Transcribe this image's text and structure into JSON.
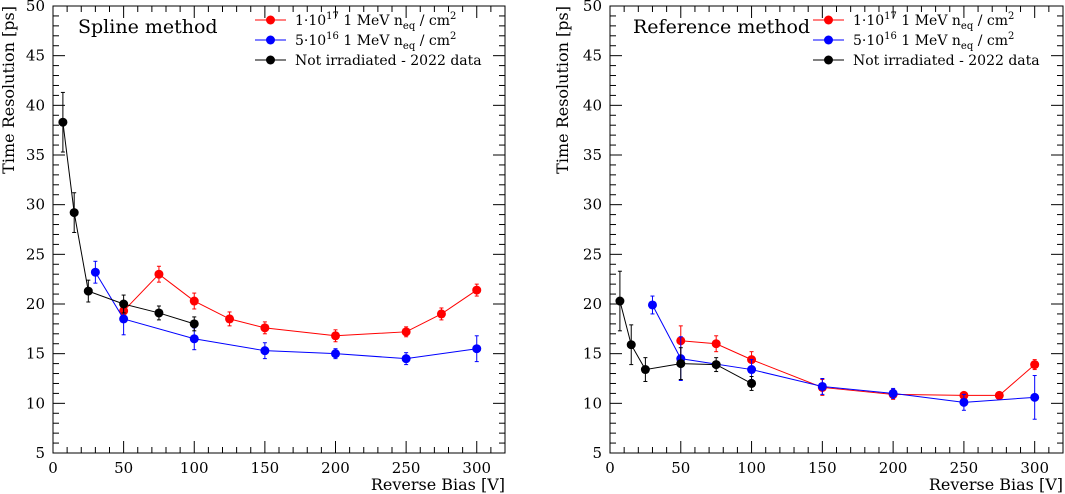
{
  "chart_data": [
    {
      "type": "scatter",
      "title": "Spline method",
      "xlabel": "Reverse Bias [V]",
      "ylabel": "Time Resolution [ps]",
      "xlim": [
        0,
        320
      ],
      "ylim": [
        5,
        50
      ],
      "xticks": [
        0,
        50,
        100,
        150,
        200,
        250,
        300
      ],
      "yticks": [
        5,
        10,
        15,
        20,
        25,
        30,
        35,
        40,
        45,
        50
      ],
      "legend_position": "top-right",
      "series": [
        {
          "name": "1·10^17 1 MeV n_eq / cm^2",
          "legend": {
            "pre": "1·10",
            "sup1": "17",
            "mid": " 1 MeV n",
            "sub": "eq",
            "post": " / cm",
            "sup2": "2"
          },
          "color": "#ff0000",
          "x": [
            50,
            75,
            100,
            125,
            150,
            200,
            250,
            275,
            300
          ],
          "y": [
            19.3,
            23.0,
            20.3,
            18.5,
            17.6,
            16.8,
            17.2,
            19.0,
            21.4
          ],
          "err": [
            1.0,
            0.8,
            0.8,
            0.7,
            0.6,
            0.6,
            0.5,
            0.6,
            0.6
          ]
        },
        {
          "name": "5·10^16 1 MeV n_eq / cm^2",
          "legend": {
            "pre": "5·10",
            "sup1": "16",
            "mid": " 1 MeV n",
            "sub": "eq",
            "post": " / cm",
            "sup2": "2"
          },
          "color": "#0000ff",
          "x": [
            30,
            50,
            100,
            150,
            200,
            250,
            300
          ],
          "y": [
            23.2,
            18.5,
            16.5,
            15.3,
            15.0,
            14.5,
            15.5
          ],
          "err": [
            1.1,
            1.6,
            1.1,
            0.8,
            0.5,
            0.6,
            1.3
          ]
        },
        {
          "name": "Not irradiated - 2022 data",
          "legend": {
            "pre": "Not irradiated - 2022 data",
            "sup1": "",
            "mid": "",
            "sub": "",
            "post": "",
            "sup2": ""
          },
          "color": "#000000",
          "x": [
            7,
            15,
            25,
            50,
            75,
            100
          ],
          "y": [
            38.3,
            29.2,
            21.3,
            20.0,
            19.1,
            18.0
          ],
          "err": [
            3.0,
            2.0,
            1.1,
            0.9,
            0.7,
            0.7
          ]
        }
      ]
    },
    {
      "type": "scatter",
      "title": "Reference method",
      "xlabel": "Reverse Bias [V]",
      "ylabel": "Time Resolution [ps]",
      "xlim": [
        0,
        320
      ],
      "ylim": [
        5,
        50
      ],
      "xticks": [
        0,
        50,
        100,
        150,
        200,
        250,
        300
      ],
      "yticks": [
        5,
        10,
        15,
        20,
        25,
        30,
        35,
        40,
        45,
        50
      ],
      "legend_position": "top-right",
      "series": [
        {
          "name": "1·10^17 1 MeV n_eq / cm^2",
          "legend": {
            "pre": "1·10",
            "sup1": "17",
            "mid": " 1 MeV n",
            "sub": "eq",
            "post": " / cm",
            "sup2": "2"
          },
          "color": "#ff0000",
          "x": [
            50,
            75,
            100,
            150,
            200,
            250,
            275,
            300
          ],
          "y": [
            16.3,
            16.0,
            14.4,
            11.6,
            10.9,
            10.8,
            10.8,
            13.9
          ],
          "err": [
            1.5,
            0.8,
            0.8,
            0.8,
            0.5,
            0.3,
            0.3,
            0.5
          ]
        },
        {
          "name": "5·10^16 1 MeV n_eq / cm^2",
          "legend": {
            "pre": "5·10",
            "sup1": "16",
            "mid": " 1 MeV n",
            "sub": "eq",
            "post": " / cm",
            "sup2": "2"
          },
          "color": "#0000ff",
          "x": [
            30,
            50,
            100,
            150,
            200,
            250,
            300
          ],
          "y": [
            19.9,
            14.5,
            13.4,
            11.7,
            11.0,
            10.1,
            10.6
          ],
          "err": [
            0.9,
            2.2,
            1.0,
            0.8,
            0.5,
            0.8,
            2.2
          ]
        },
        {
          "name": "Not irradiated - 2022 data",
          "legend": {
            "pre": "Not irradiated - 2022 data",
            "sup1": "",
            "mid": "",
            "sub": "",
            "post": "",
            "sup2": ""
          },
          "color": "#000000",
          "x": [
            7,
            15,
            25,
            50,
            75,
            100
          ],
          "y": [
            20.3,
            15.9,
            13.4,
            14.0,
            13.9,
            12.0
          ],
          "err": [
            3.0,
            2.0,
            1.2,
            1.6,
            0.7,
            0.7
          ]
        }
      ]
    }
  ]
}
